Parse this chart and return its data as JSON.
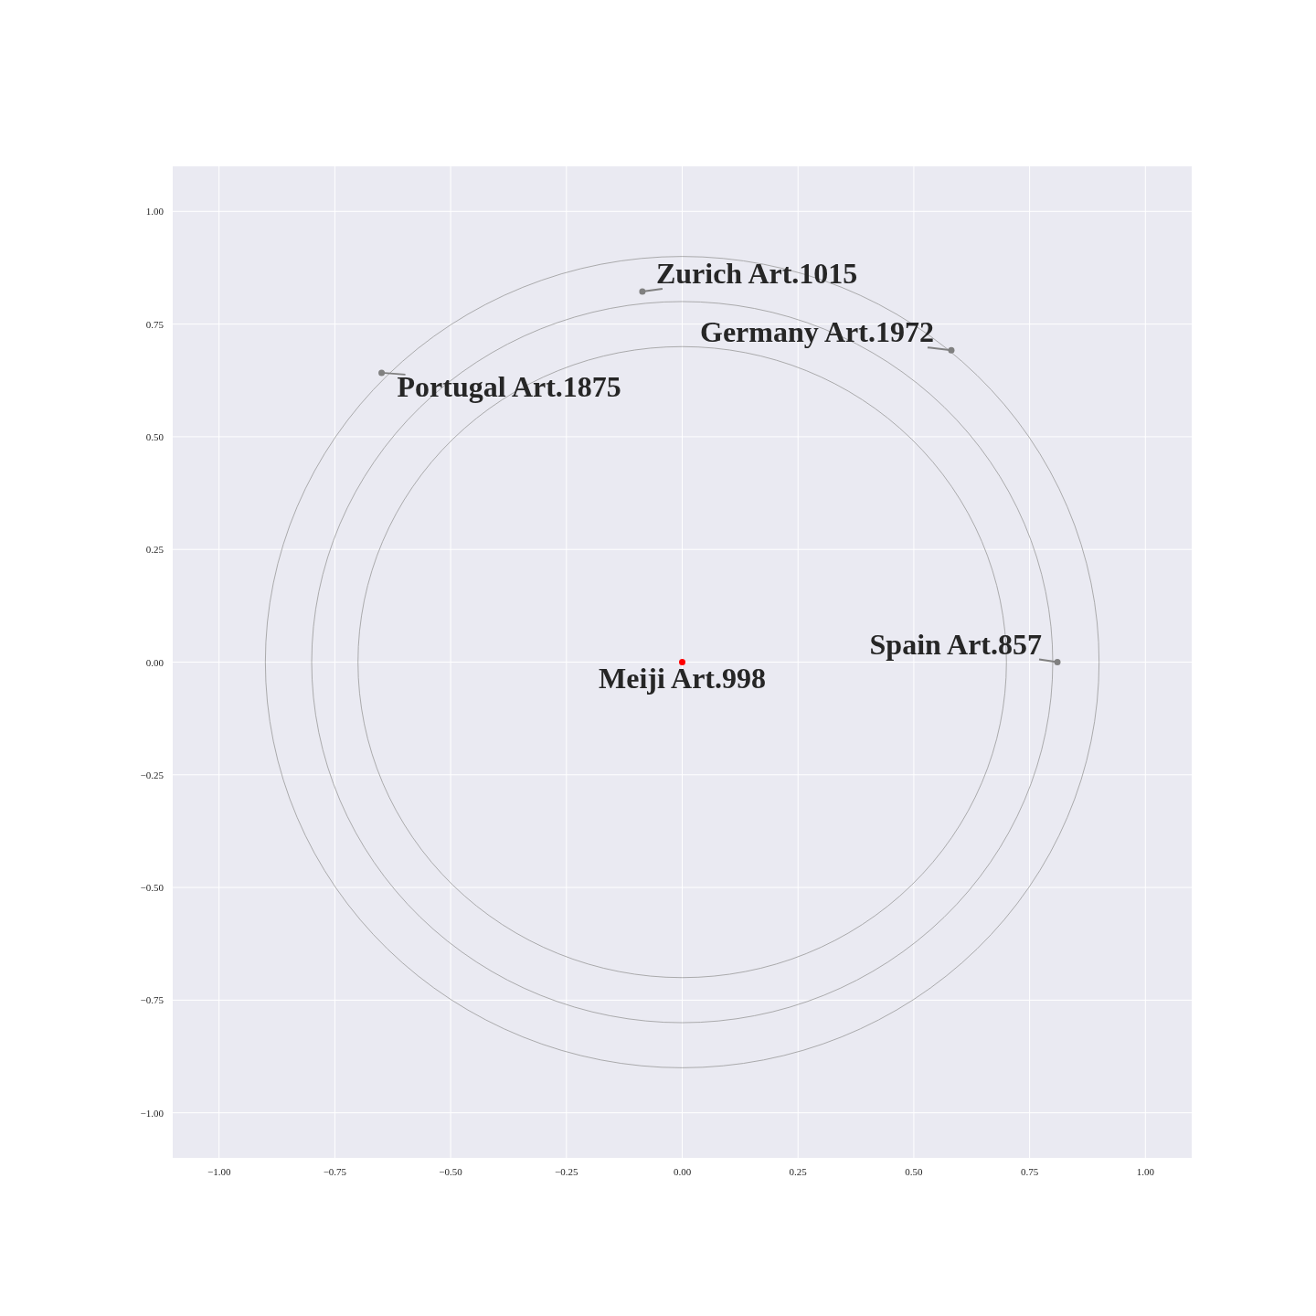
{
  "chart_data": {
    "type": "scatter",
    "xlim": [
      -1.1,
      1.1
    ],
    "ylim": [
      -1.1,
      1.1
    ],
    "xticks": [
      {
        "value": -1,
        "label": "−1.00"
      },
      {
        "value": -0.75,
        "label": "−0.75"
      },
      {
        "value": -0.5,
        "label": "−0.50"
      },
      {
        "value": -0.25,
        "label": "−0.25"
      },
      {
        "value": 0,
        "label": "0.00"
      },
      {
        "value": 0.25,
        "label": "0.25"
      },
      {
        "value": 0.5,
        "label": "0.50"
      },
      {
        "value": 0.75,
        "label": "0.75"
      },
      {
        "value": 1,
        "label": "1.00"
      }
    ],
    "yticks": [
      {
        "value": -1,
        "label": "−1.00"
      },
      {
        "value": -0.75,
        "label": "−0.75"
      },
      {
        "value": -0.5,
        "label": "−0.50"
      },
      {
        "value": -0.25,
        "label": "−0.25"
      },
      {
        "value": 0,
        "label": "0.00"
      },
      {
        "value": 0.25,
        "label": "0.25"
      },
      {
        "value": 0.5,
        "label": "0.50"
      },
      {
        "value": 0.75,
        "label": "0.75"
      },
      {
        "value": 1,
        "label": "1.00"
      }
    ],
    "grid": true,
    "marker": "circle",
    "series": [
      {
        "x": [
          0,
          -0.086,
          0.581,
          -0.649,
          0.81
        ],
        "values": [
          0,
          0.822,
          0.692,
          0.642,
          0
        ],
        "colors": [
          "#ff0000",
          "#808080",
          "#808080",
          "#808080",
          "#808080"
        ]
      }
    ],
    "annotations": [
      {
        "text": "Meiji Art.998",
        "x": 0,
        "y": 0
      },
      {
        "text": "Zurich Art.1015",
        "x": -0.086,
        "y": 0.822
      },
      {
        "text": "Germany Art.1972",
        "x": 0.581,
        "y": 0.692
      },
      {
        "text": "Portugal Art.1875",
        "x": -0.649,
        "y": 0.642
      },
      {
        "text": "Spain Art.857",
        "x": 0.81,
        "y": 0
      }
    ]
  }
}
